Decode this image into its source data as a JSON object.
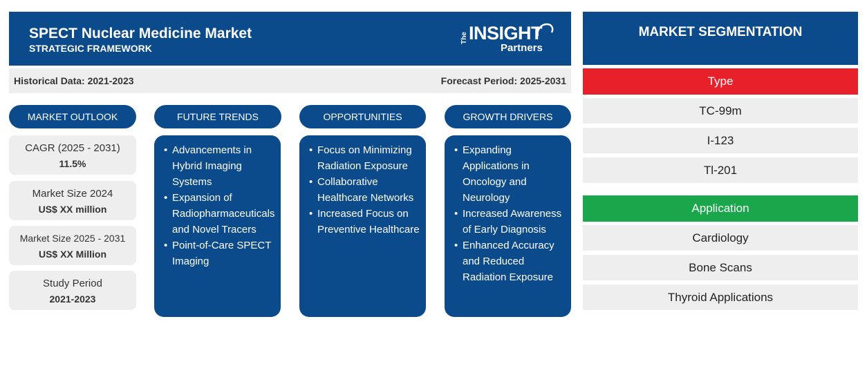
{
  "header": {
    "title": "SPECT Nuclear Medicine Market",
    "subtitle": "STRATEGIC FRAMEWORK"
  },
  "logo": {
    "the": "The",
    "insight": "INSIGHT",
    "partners": "Partners"
  },
  "periods": {
    "historical": "Historical Data: 2021-2023",
    "forecast": "Forecast Period: 2025-2031"
  },
  "columns": {
    "outlook": "MARKET OUTLOOK",
    "trends": "FUTURE TRENDS",
    "opportunities": "OPPORTUNITIES",
    "drivers": "GROWTH DRIVERS"
  },
  "outlook": [
    {
      "label": "CAGR (2025 - 2031)",
      "value": "11.5%"
    },
    {
      "label": "Market Size 2024",
      "value": "US$ XX million"
    },
    {
      "label": "Market Size 2025 - 2031",
      "value": "US$ XX Million"
    },
    {
      "label": "Study Period",
      "value": "2021-2023"
    }
  ],
  "trends": [
    "Advancements in Hybrid Imaging Systems",
    "Expansion of Radiopharmaceuticals and Novel Tracers",
    "Point-of-Care SPECT Imaging"
  ],
  "opportunities": [
    "Focus on Minimizing Radiation Exposure",
    "Collaborative Healthcare Networks",
    "Increased Focus on Preventive Healthcare"
  ],
  "drivers": [
    "Expanding Applications in Oncology and Neurology",
    "Increased Awareness of Early Diagnosis",
    "Enhanced Accuracy and Reduced Radiation Exposure"
  ],
  "segmentation": {
    "title": "MARKET SEGMENTATION",
    "type": {
      "label": "Type",
      "items": [
        "TC-99m",
        "I-123",
        "Tl-201"
      ]
    },
    "application": {
      "label": "Application",
      "items": [
        "Cardiology",
        "Bone Scans",
        "Thyroid Applications"
      ]
    }
  },
  "colors": {
    "primary": "#0b4a8b",
    "type_header": "#e8202a",
    "application_header": "#1aa64a",
    "panel_gray": "#eeeeee"
  }
}
